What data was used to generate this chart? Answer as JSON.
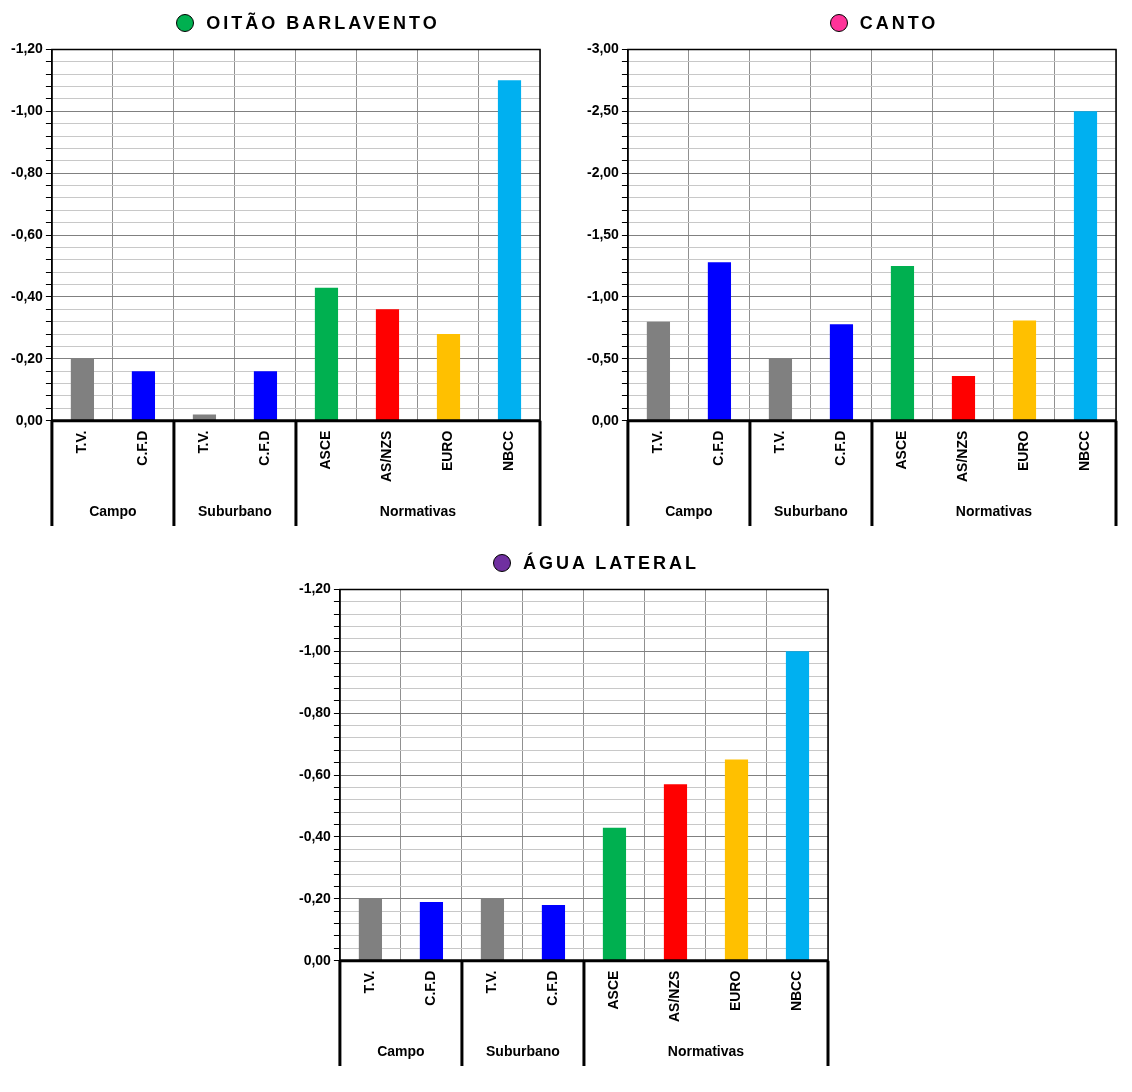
{
  "chart_data": [
    {
      "type": "bar",
      "title": "OITÃO BARLAVENTO",
      "categories": [
        "T.V.",
        "C.F.D",
        "T.V.",
        "C.F.D",
        "ASCE",
        "AS/NZS",
        "EURO",
        "NBCC"
      ],
      "values": [
        -0.2,
        -0.16,
        -0.02,
        -0.16,
        -0.43,
        -0.36,
        -0.28,
        -1.1
      ],
      "colors": [
        "#808080",
        "#0000ff",
        "#808080",
        "#0000ff",
        "#00b050",
        "#ff0000",
        "#ffc000",
        "#00b0f0"
      ],
      "ylim": [
        0,
        -1.2
      ],
      "yticks": [
        {
          "value": 0,
          "label": "0,00"
        },
        {
          "value": -0.04,
          "label": null
        },
        {
          "value": -0.08,
          "label": null
        },
        {
          "value": -0.12,
          "label": null
        },
        {
          "value": -0.16,
          "label": null
        },
        {
          "value": -0.2,
          "label": "-0,20"
        },
        {
          "value": -0.24,
          "label": null
        },
        {
          "value": -0.28,
          "label": null
        },
        {
          "value": -0.32,
          "label": null
        },
        {
          "value": -0.36,
          "label": null
        },
        {
          "value": -0.4,
          "label": "-0,40"
        },
        {
          "value": -0.44,
          "label": null
        },
        {
          "value": -0.48,
          "label": null
        },
        {
          "value": -0.52,
          "label": null
        },
        {
          "value": -0.56,
          "label": null
        },
        {
          "value": -0.6,
          "label": "-0,60"
        },
        {
          "value": -0.64,
          "label": null
        },
        {
          "value": -0.68,
          "label": null
        },
        {
          "value": -0.72,
          "label": null
        },
        {
          "value": -0.76,
          "label": null
        },
        {
          "value": -0.8,
          "label": "-0,80"
        },
        {
          "value": -0.84,
          "label": null
        },
        {
          "value": -0.88,
          "label": null
        },
        {
          "value": -0.92,
          "label": null
        },
        {
          "value": -0.96,
          "label": null
        },
        {
          "value": -1.0,
          "label": "-1,00"
        },
        {
          "value": -1.04,
          "label": null
        },
        {
          "value": -1.08,
          "label": null
        },
        {
          "value": -1.12,
          "label": null
        },
        {
          "value": -1.16,
          "label": null
        },
        {
          "value": -1.2,
          "label": "-1,20"
        }
      ],
      "grid": true,
      "legend": false,
      "annotations": [
        "Campo",
        "Suburbano",
        "Normativas"
      ]
    },
    {
      "type": "bar",
      "title": "CANTO",
      "categories": [
        "T.V.",
        "C.F.D",
        "T.V.",
        "C.F.D",
        "ASCE",
        "AS/NZS",
        "EURO",
        "NBCC"
      ],
      "values": [
        -0.8,
        -1.28,
        -0.5,
        -0.78,
        -1.25,
        -0.36,
        -0.81,
        -2.5
      ],
      "colors": [
        "#808080",
        "#0000ff",
        "#808080",
        "#0000ff",
        "#00b050",
        "#ff0000",
        "#ffc000",
        "#00b0f0"
      ],
      "ylim": [
        0,
        -3
      ],
      "yticks": [
        {
          "value": 0,
          "label": "0,00"
        },
        {
          "value": -0.1,
          "label": null
        },
        {
          "value": -0.2,
          "label": null
        },
        {
          "value": -0.3,
          "label": null
        },
        {
          "value": -0.4,
          "label": null
        },
        {
          "value": -0.5,
          "label": "-0,50"
        },
        {
          "value": -0.6,
          "label": null
        },
        {
          "value": -0.7,
          "label": null
        },
        {
          "value": -0.8,
          "label": null
        },
        {
          "value": -0.9,
          "label": null
        },
        {
          "value": -1.0,
          "label": "-1,00"
        },
        {
          "value": -1.1,
          "label": null
        },
        {
          "value": -1.2,
          "label": null
        },
        {
          "value": -1.3,
          "label": null
        },
        {
          "value": -1.4,
          "label": null
        },
        {
          "value": -1.5,
          "label": "-1,50"
        },
        {
          "value": -1.6,
          "label": null
        },
        {
          "value": -1.7,
          "label": null
        },
        {
          "value": -1.8,
          "label": null
        },
        {
          "value": -1.9,
          "label": null
        },
        {
          "value": -2.0,
          "label": "-2,00"
        },
        {
          "value": -2.1,
          "label": null
        },
        {
          "value": -2.2,
          "label": null
        },
        {
          "value": -2.3,
          "label": null
        },
        {
          "value": -2.4,
          "label": null
        },
        {
          "value": -2.5,
          "label": "-2,50"
        },
        {
          "value": -2.6,
          "label": null
        },
        {
          "value": -2.7,
          "label": null
        },
        {
          "value": -2.8,
          "label": null
        },
        {
          "value": -2.9,
          "label": null
        },
        {
          "value": -3.0,
          "label": "-3,00"
        }
      ],
      "grid": true,
      "legend": false,
      "annotations": [
        "Campo",
        "Suburbano",
        "Normativas"
      ]
    },
    {
      "type": "bar",
      "title": "ÁGUA LATERAL",
      "categories": [
        "T.V.",
        "C.F.D",
        "T.V.",
        "C.F.D",
        "ASCE",
        "AS/NZS",
        "EURO",
        "NBCC"
      ],
      "values": [
        -0.2,
        -0.19,
        -0.2,
        -0.18,
        -0.43,
        -0.57,
        -0.65,
        -1.0
      ],
      "colors": [
        "#808080",
        "#0000ff",
        "#808080",
        "#0000ff",
        "#00b050",
        "#ff0000",
        "#ffc000",
        "#00b0f0"
      ],
      "ylim": [
        0,
        -1.2
      ],
      "yticks": [
        {
          "value": 0,
          "label": "0,00"
        },
        {
          "value": -0.04,
          "label": null
        },
        {
          "value": -0.08,
          "label": null
        },
        {
          "value": -0.12,
          "label": null
        },
        {
          "value": -0.16,
          "label": null
        },
        {
          "value": -0.2,
          "label": "-0,20"
        },
        {
          "value": -0.24,
          "label": null
        },
        {
          "value": -0.28,
          "label": null
        },
        {
          "value": -0.32,
          "label": null
        },
        {
          "value": -0.36,
          "label": null
        },
        {
          "value": -0.4,
          "label": "-0,40"
        },
        {
          "value": -0.44,
          "label": null
        },
        {
          "value": -0.48,
          "label": null
        },
        {
          "value": -0.52,
          "label": null
        },
        {
          "value": -0.56,
          "label": null
        },
        {
          "value": -0.6,
          "label": "-0,60"
        },
        {
          "value": -0.64,
          "label": null
        },
        {
          "value": -0.68,
          "label": null
        },
        {
          "value": -0.72,
          "label": null
        },
        {
          "value": -0.76,
          "label": null
        },
        {
          "value": -0.8,
          "label": "-0,80"
        },
        {
          "value": -0.84,
          "label": null
        },
        {
          "value": -0.88,
          "label": null
        },
        {
          "value": -0.92,
          "label": null
        },
        {
          "value": -0.96,
          "label": null
        },
        {
          "value": -1.0,
          "label": "-1,00"
        },
        {
          "value": -1.04,
          "label": null
        },
        {
          "value": -1.08,
          "label": null
        },
        {
          "value": -1.12,
          "label": null
        },
        {
          "value": -1.16,
          "label": null
        },
        {
          "value": -1.2,
          "label": "-1,20"
        }
      ],
      "grid": true,
      "legend": false,
      "annotations": [
        "Campo",
        "Suburbano",
        "Normativas"
      ]
    }
  ]
}
